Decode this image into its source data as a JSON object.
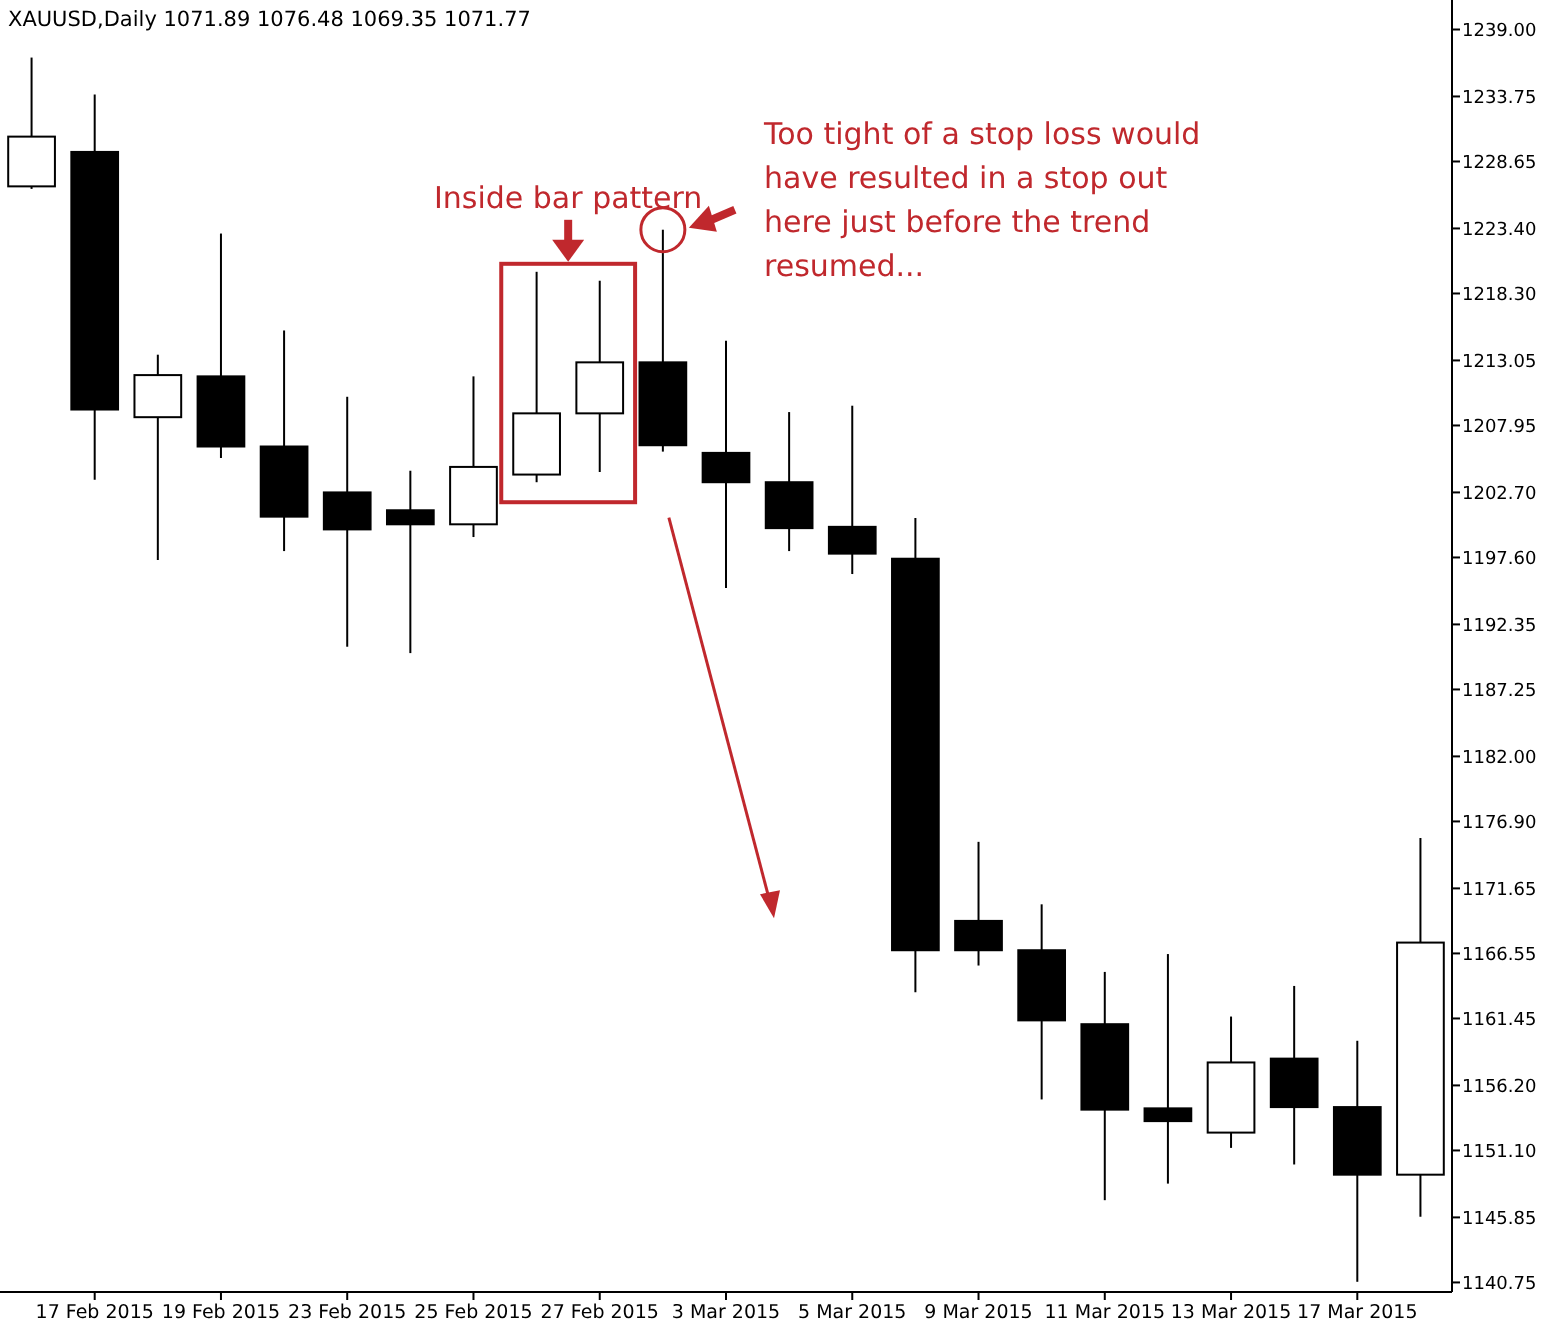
{
  "chart_data": {
    "type": "candlestick",
    "title": "XAUUSD,Daily  1071.89 1076.48 1069.35 1071.77",
    "annotations": [
      "Inside bar pattern",
      "Too tight of a stop loss would have resulted in a stop out here just before the trend resumed..."
    ],
    "categories": [
      null,
      "17 Feb 2015",
      null,
      "19 Feb 2015",
      null,
      "23 Feb 2015",
      null,
      "25 Feb 2015",
      null,
      "27 Feb 2015",
      null,
      "3 Mar 2015",
      null,
      "5 Mar 2015",
      null,
      "9 Mar 2015",
      null,
      "11 Mar 2015",
      null,
      "13 Mar 2015",
      null,
      "17 Mar 2015",
      null
    ],
    "ohlc": [
      [
        1226.7,
        1236.8,
        1226.5,
        1230.6
      ],
      [
        1229.4,
        1233.9,
        1203.7,
        1209.2
      ],
      [
        1208.6,
        1213.5,
        1197.4,
        1211.9
      ],
      [
        1211.8,
        1223.0,
        1205.4,
        1206.3
      ],
      [
        1206.3,
        1215.4,
        1198.1,
        1200.8
      ],
      [
        1202.7,
        1210.2,
        1190.6,
        1199.8
      ],
      [
        1201.3,
        1204.4,
        1190.1,
        1200.2
      ],
      [
        1200.2,
        1211.8,
        1199.2,
        1204.7
      ],
      [
        1204.1,
        1220.0,
        1203.5,
        1208.9
      ],
      [
        1208.9,
        1219.3,
        1204.3,
        1212.9
      ],
      [
        1212.9,
        1223.3,
        1205.9,
        1206.4
      ],
      [
        1205.8,
        1214.6,
        1195.2,
        1203.5
      ],
      [
        1203.5,
        1209.0,
        1198.1,
        1199.9
      ],
      [
        1200.0,
        1209.5,
        1196.3,
        1197.9
      ],
      [
        1197.5,
        1200.7,
        1163.5,
        1166.8
      ],
      [
        1169.1,
        1175.3,
        1165.6,
        1166.8
      ],
      [
        1166.8,
        1170.4,
        1155.1,
        1161.3
      ],
      [
        1161.0,
        1165.1,
        1147.2,
        1154.3
      ],
      [
        1154.4,
        1166.5,
        1148.5,
        1153.4
      ],
      [
        1152.5,
        1161.6,
        1151.3,
        1158.0
      ],
      [
        1158.3,
        1164.0,
        1150.0,
        1154.5
      ],
      [
        1154.5,
        1159.7,
        1140.8,
        1149.2
      ],
      [
        1149.2,
        1175.6,
        1145.9,
        1167.4
      ]
    ],
    "ylim": [
      1140,
      1241
    ],
    "yticks": [
      {
        "value": 1239,
        "label": "1239.00"
      },
      {
        "value": 1233.75,
        "label": "1233.75"
      },
      {
        "value": 1228.65,
        "label": "1228.65"
      },
      {
        "value": 1223.4,
        "label": "1223.40"
      },
      {
        "value": 1218.3,
        "label": "1218.30"
      },
      {
        "value": 1213.05,
        "label": "1213.05"
      },
      {
        "value": 1207.95,
        "label": "1207.95"
      },
      {
        "value": 1202.7,
        "label": "1202.70"
      },
      {
        "value": 1197.6,
        "label": "1197.60"
      },
      {
        "value": 1192.35,
        "label": "1192.35"
      },
      {
        "value": 1187.25,
        "label": "1187.25"
      },
      {
        "value": 1182,
        "label": "1182.00"
      },
      {
        "value": 1176.9,
        "label": "1176.90"
      },
      {
        "value": 1171.65,
        "label": "1171.65"
      },
      {
        "value": 1166.55,
        "label": "1166.55"
      },
      {
        "value": 1161.45,
        "label": "1161.45"
      },
      {
        "value": 1156.2,
        "label": "1156.20"
      },
      {
        "value": 1151.1,
        "label": "1151.10"
      },
      {
        "value": 1145.85,
        "label": "1145.85"
      },
      {
        "value": 1140.75,
        "label": "1140.75"
      }
    ]
  }
}
